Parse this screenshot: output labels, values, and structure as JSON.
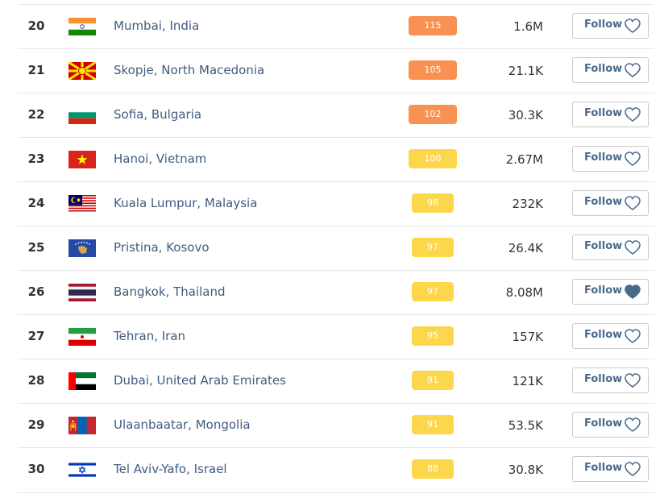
{
  "table": {
    "rows": [
      {
        "rank": 20,
        "city": "Mumbai, India",
        "aqi": 115,
        "aqi_color": "#f89152",
        "population": "1.6M",
        "follow": "Follow",
        "followed": false
      },
      {
        "rank": 21,
        "city": "Skopje, North Macedonia",
        "aqi": 105,
        "aqi_color": "#f89152",
        "population": "21.1K",
        "follow": "Follow",
        "followed": false
      },
      {
        "rank": 22,
        "city": "Sofia, Bulgaria",
        "aqi": 102,
        "aqi_color": "#f89152",
        "population": "30.3K",
        "follow": "Follow",
        "followed": false
      },
      {
        "rank": 23,
        "city": "Hanoi, Vietnam",
        "aqi": 100,
        "aqi_color": "#fdd74b",
        "population": "2.67M",
        "follow": "Follow",
        "followed": false
      },
      {
        "rank": 24,
        "city": "Kuala Lumpur, Malaysia",
        "aqi": 98,
        "aqi_color": "#fdd74b",
        "population": "232K",
        "follow": "Follow",
        "followed": false
      },
      {
        "rank": 25,
        "city": "Pristina, Kosovo",
        "aqi": 97,
        "aqi_color": "#fdd74b",
        "population": "26.4K",
        "follow": "Follow",
        "followed": false
      },
      {
        "rank": 26,
        "city": "Bangkok, Thailand",
        "aqi": 97,
        "aqi_color": "#fdd74b",
        "population": "8.08M",
        "follow": "Follow",
        "followed": true
      },
      {
        "rank": 27,
        "city": "Tehran, Iran",
        "aqi": 95,
        "aqi_color": "#fdd74b",
        "population": "157K",
        "follow": "Follow",
        "followed": false
      },
      {
        "rank": 28,
        "city": "Dubai, United Arab Emirates",
        "aqi": 91,
        "aqi_color": "#fdd74b",
        "population": "121K",
        "follow": "Follow",
        "followed": false
      },
      {
        "rank": 29,
        "city": "Ulaanbaatar, Mongolia",
        "aqi": 91,
        "aqi_color": "#fdd74b",
        "population": "53.5K",
        "follow": "Follow",
        "followed": false
      },
      {
        "rank": 30,
        "city": "Tel Aviv-Yafo, Israel",
        "aqi": 88,
        "aqi_color": "#fdd74b",
        "population": "30.8K",
        "follow": "Follow",
        "followed": false
      }
    ]
  }
}
